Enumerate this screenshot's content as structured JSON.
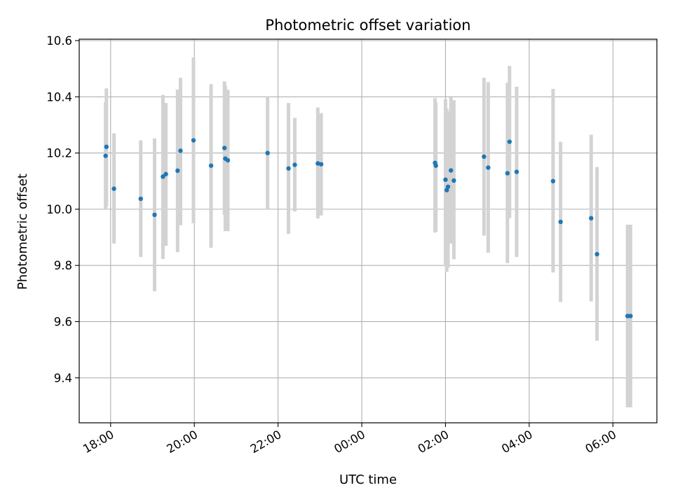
{
  "chart_data": {
    "type": "scatter",
    "title": "Photometric offset variation",
    "xlabel": "UTC time",
    "ylabel": "Photometric offset",
    "grid": true,
    "x_unit": "hours since 18:00 UTC",
    "xlim": [
      -0.75,
      13.05
    ],
    "ylim": [
      9.24,
      10.605
    ],
    "xticks": [
      {
        "value": 0,
        "label": "18:00"
      },
      {
        "value": 2,
        "label": "20:00"
      },
      {
        "value": 4,
        "label": "22:00"
      },
      {
        "value": 6,
        "label": "00:00"
      },
      {
        "value": 8,
        "label": "02:00"
      },
      {
        "value": 10,
        "label": "04:00"
      },
      {
        "value": 12,
        "label": "06:00"
      }
    ],
    "yticks": [
      {
        "value": 9.4,
        "label": "9.4"
      },
      {
        "value": 9.6,
        "label": "9.6"
      },
      {
        "value": 9.8,
        "label": "9.8"
      },
      {
        "value": 10.0,
        "label": "10.0"
      },
      {
        "value": 10.2,
        "label": "10.2"
      },
      {
        "value": 10.4,
        "label": "10.4"
      },
      {
        "value": 10.6,
        "label": "10.6"
      }
    ],
    "series": [
      {
        "name": "offset",
        "marker_color": "#1f77b4",
        "error_color": "#d3d3d3",
        "points": [
          {
            "x": -0.12,
            "y": 10.19,
            "lo": 10.0,
            "hi": 10.38
          },
          {
            "x": -0.1,
            "y": 10.222,
            "lo": 10.01,
            "hi": 10.43
          },
          {
            "x": 0.08,
            "y": 10.073,
            "lo": 9.878,
            "hi": 10.27
          },
          {
            "x": 0.72,
            "y": 10.037,
            "lo": 9.83,
            "hi": 10.245
          },
          {
            "x": 1.05,
            "y": 9.98,
            "lo": 9.708,
            "hi": 10.252
          },
          {
            "x": 1.25,
            "y": 10.116,
            "lo": 9.823,
            "hi": 10.407
          },
          {
            "x": 1.32,
            "y": 10.125,
            "lo": 9.87,
            "hi": 10.378
          },
          {
            "x": 1.6,
            "y": 10.137,
            "lo": 9.847,
            "hi": 10.426
          },
          {
            "x": 1.67,
            "y": 10.208,
            "lo": 9.943,
            "hi": 10.468
          },
          {
            "x": 1.98,
            "y": 10.245,
            "lo": 9.95,
            "hi": 10.54
          },
          {
            "x": 2.4,
            "y": 10.155,
            "lo": 9.863,
            "hi": 10.445
          },
          {
            "x": 2.72,
            "y": 10.218,
            "lo": 9.98,
            "hi": 10.455
          },
          {
            "x": 2.74,
            "y": 10.18,
            "lo": 9.922,
            "hi": 10.438
          },
          {
            "x": 2.8,
            "y": 10.174,
            "lo": 9.922,
            "hi": 10.425
          },
          {
            "x": 3.75,
            "y": 10.2,
            "lo": 10.0,
            "hi": 10.4
          },
          {
            "x": 4.25,
            "y": 10.145,
            "lo": 9.912,
            "hi": 10.378
          },
          {
            "x": 4.4,
            "y": 10.158,
            "lo": 9.992,
            "hi": 10.325
          },
          {
            "x": 4.95,
            "y": 10.163,
            "lo": 9.967,
            "hi": 10.362
          },
          {
            "x": 5.03,
            "y": 10.16,
            "lo": 9.978,
            "hi": 10.342
          },
          {
            "x": 7.75,
            "y": 10.165,
            "lo": 9.917,
            "hi": 10.395
          },
          {
            "x": 7.77,
            "y": 10.155,
            "lo": 9.92,
            "hi": 10.38
          },
          {
            "x": 8.0,
            "y": 10.105,
            "lo": 9.797,
            "hi": 10.392
          },
          {
            "x": 8.03,
            "y": 10.068,
            "lo": 9.777,
            "hi": 10.358
          },
          {
            "x": 8.06,
            "y": 10.08,
            "lo": 9.792,
            "hi": 10.348
          },
          {
            "x": 8.13,
            "y": 10.138,
            "lo": 9.878,
            "hi": 10.398
          },
          {
            "x": 8.2,
            "y": 10.102,
            "lo": 9.822,
            "hi": 10.388
          },
          {
            "x": 8.92,
            "y": 10.187,
            "lo": 9.906,
            "hi": 10.468
          },
          {
            "x": 9.02,
            "y": 10.148,
            "lo": 9.845,
            "hi": 10.452
          },
          {
            "x": 9.48,
            "y": 10.128,
            "lo": 9.808,
            "hi": 10.45
          },
          {
            "x": 9.53,
            "y": 10.24,
            "lo": 9.968,
            "hi": 10.51
          },
          {
            "x": 9.7,
            "y": 10.133,
            "lo": 9.83,
            "hi": 10.436
          },
          {
            "x": 10.57,
            "y": 10.1,
            "lo": 9.775,
            "hi": 10.428
          },
          {
            "x": 10.75,
            "y": 9.955,
            "lo": 9.67,
            "hi": 10.24
          },
          {
            "x": 11.48,
            "y": 9.968,
            "lo": 9.672,
            "hi": 10.265
          },
          {
            "x": 11.62,
            "y": 9.84,
            "lo": 9.532,
            "hi": 10.15
          },
          {
            "x": 12.35,
            "y": 9.62,
            "lo": 9.295,
            "hi": 9.945
          },
          {
            "x": 12.42,
            "y": 9.62,
            "lo": 9.295,
            "hi": 9.945
          }
        ]
      }
    ]
  }
}
